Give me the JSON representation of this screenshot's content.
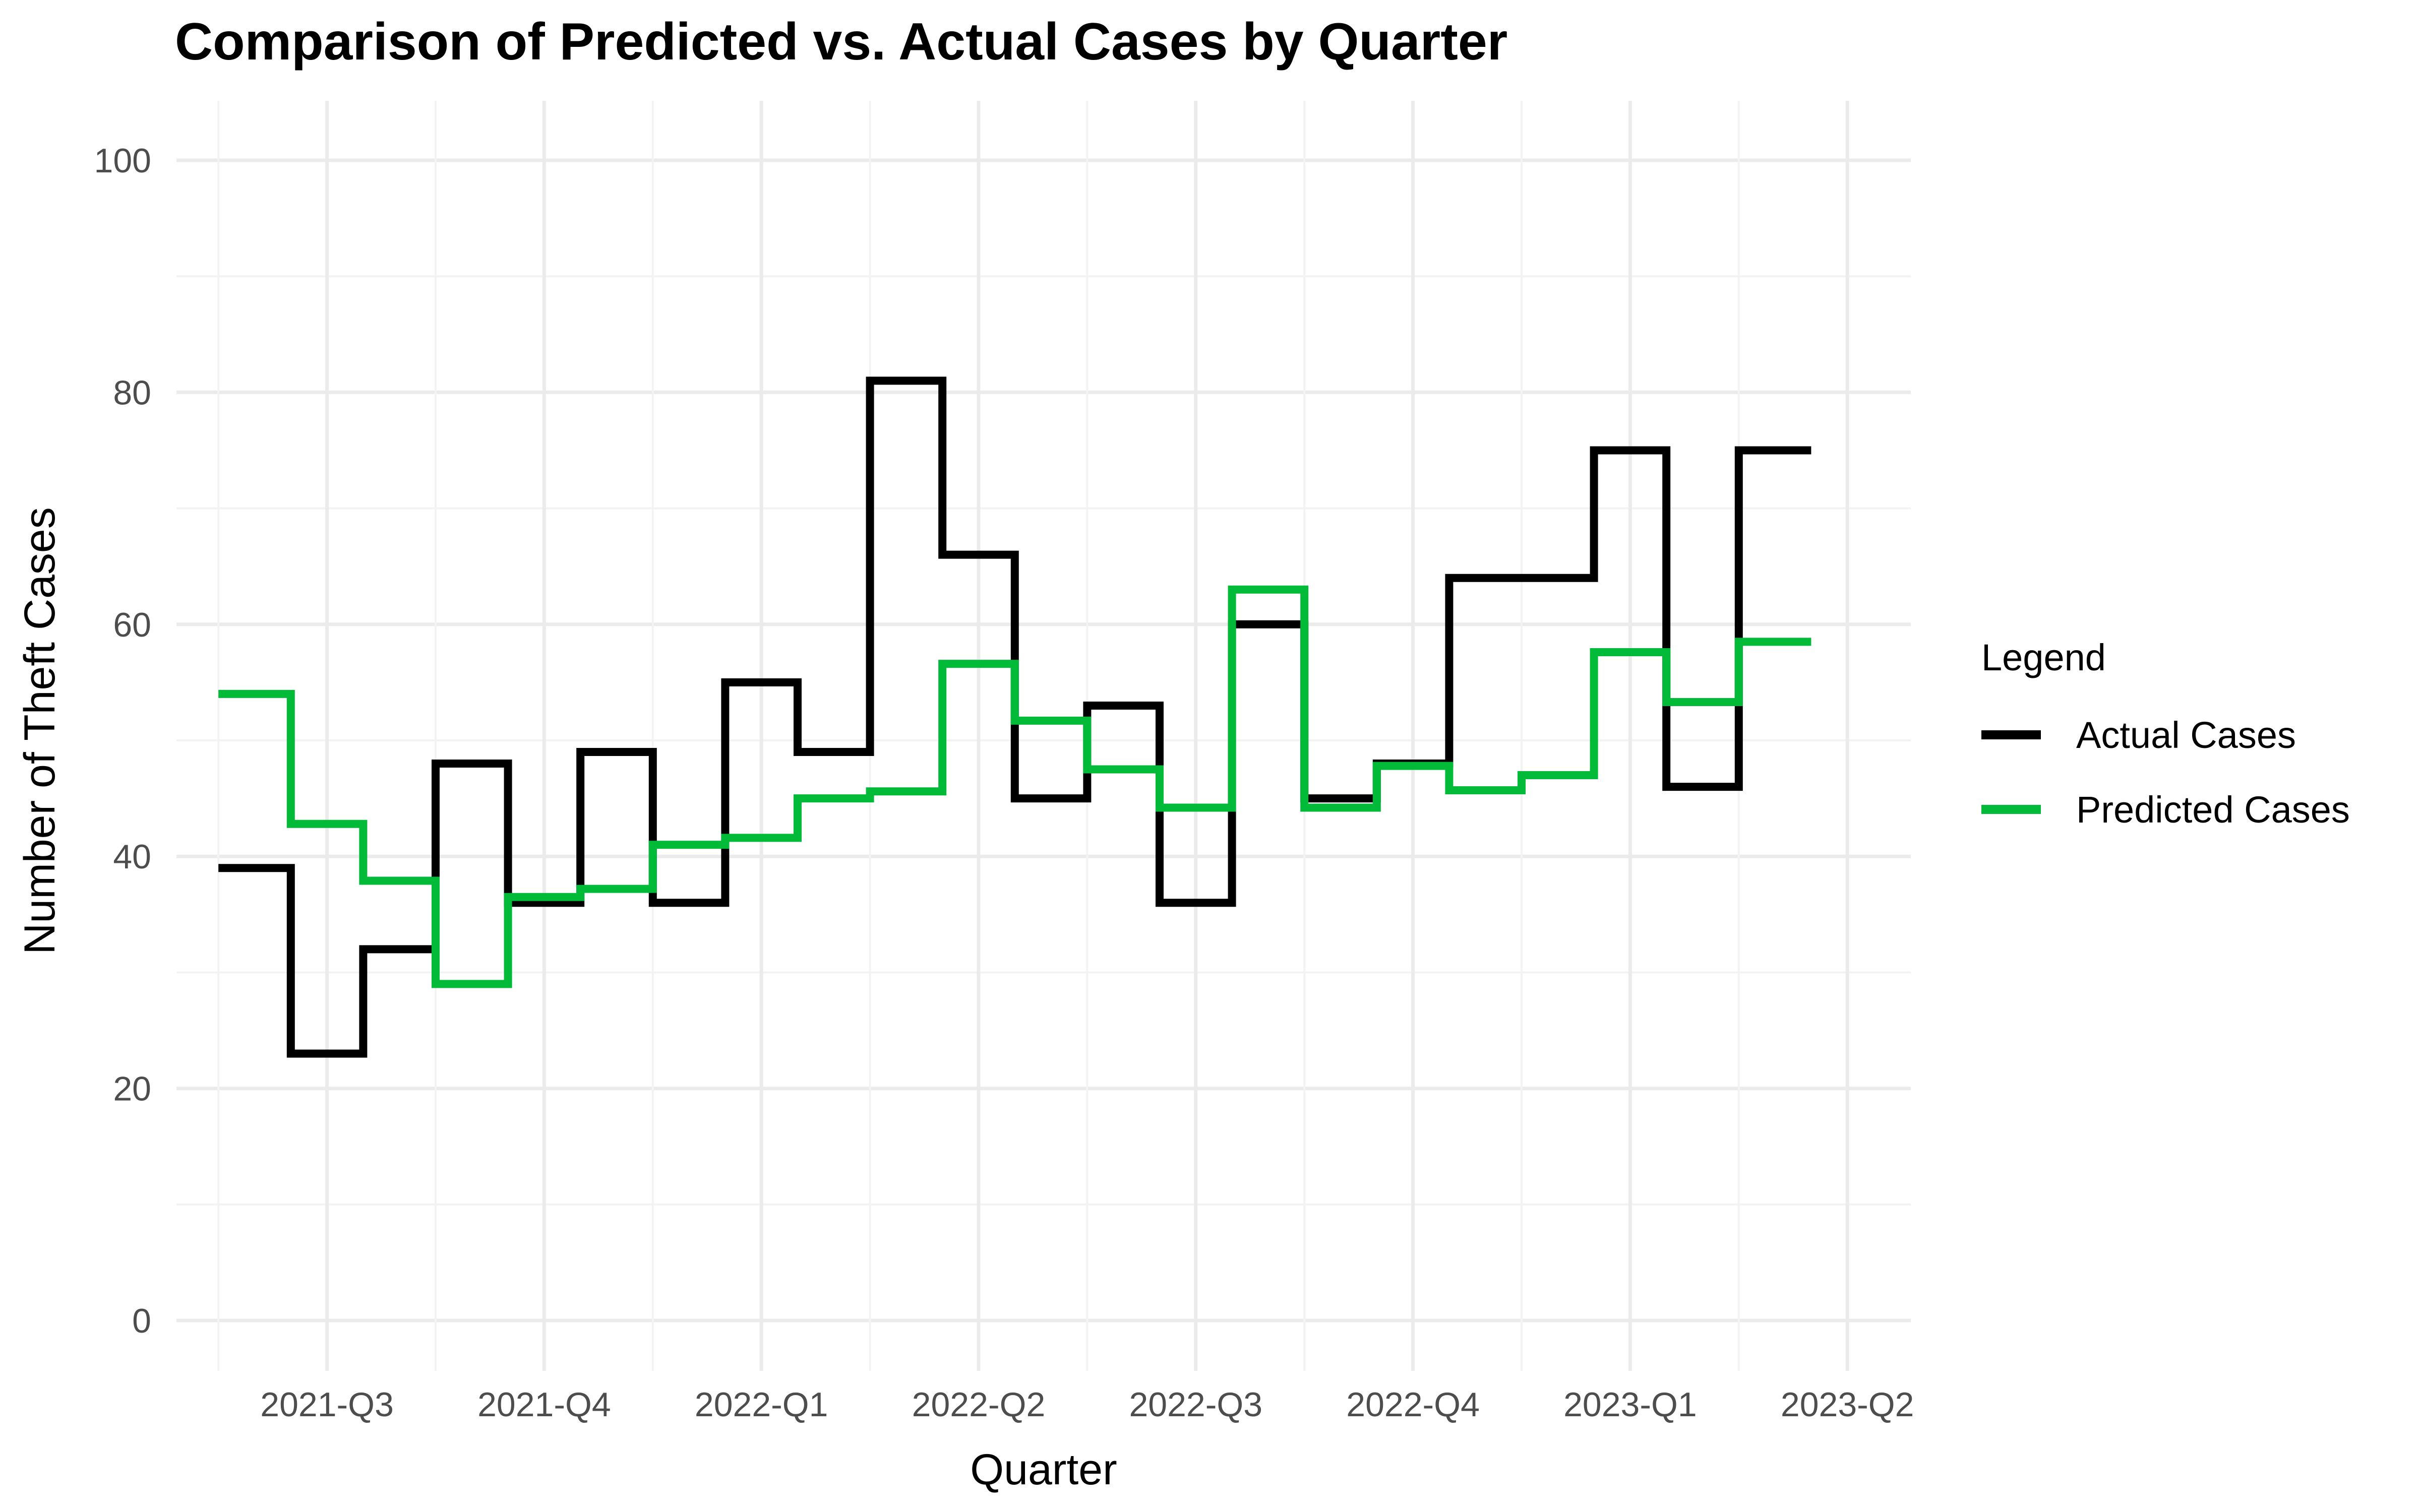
{
  "chart_data": {
    "type": "line",
    "title": "Comparison of Predicted vs. Actual Cases by Quarter",
    "xlabel": "Quarter",
    "ylabel": "Number of Theft Cases",
    "x_ticks": [
      "2021-Q3",
      "2021-Q4",
      "2022-Q1",
      "2022-Q2",
      "2022-Q3",
      "2022-Q4",
      "2023-Q1",
      "2023-Q2"
    ],
    "y_ticks": [
      0,
      20,
      40,
      60,
      80,
      100
    ],
    "ylim": [
      0,
      100
    ],
    "step_style": "steps-mid",
    "grid": true,
    "legend": {
      "title": "Legend",
      "placement": "right"
    },
    "x": [
      "2021-07",
      "2021-08",
      "2021-09",
      "2021-10",
      "2021-11",
      "2021-12",
      "2022-01",
      "2022-02",
      "2022-03",
      "2022-04",
      "2022-05",
      "2022-06",
      "2022-07",
      "2022-08",
      "2022-09",
      "2022-10",
      "2022-11",
      "2022-12",
      "2023-01",
      "2023-02",
      "2023-03",
      "2023-04"
    ],
    "series": [
      {
        "name": "Actual Cases",
        "color": "#000000",
        "values": [
          39,
          23,
          32,
          48,
          36,
          49,
          36,
          55,
          49,
          81,
          66,
          45,
          53,
          36,
          60,
          45,
          48,
          64,
          64,
          75,
          46,
          75
        ]
      },
      {
        "name": "Predicted Cases",
        "color": "#00ba38",
        "values": [
          54,
          42.8,
          37.9,
          29,
          36.5,
          37.2,
          41,
          41.6,
          45,
          45.6,
          56.6,
          51.7,
          47.5,
          44.2,
          63,
          44.2,
          47.8,
          45.7,
          47,
          57.6,
          53.3,
          58.5
        ]
      }
    ]
  }
}
